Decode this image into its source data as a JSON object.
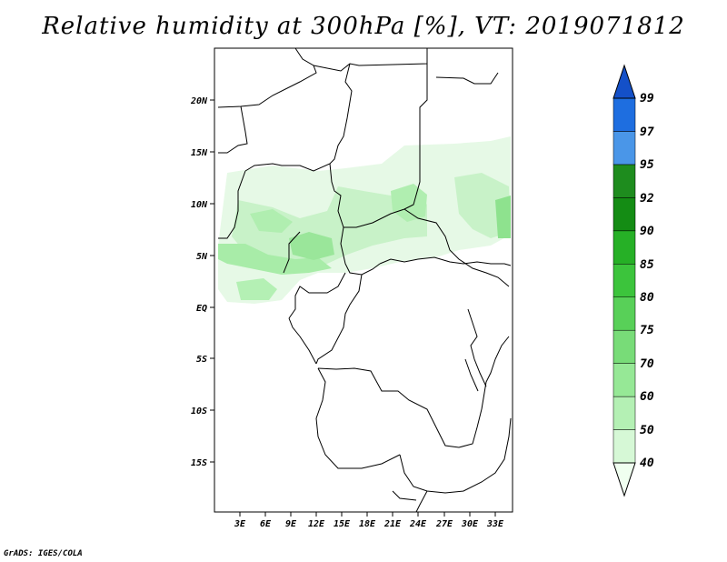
{
  "title": "Relative humidity at 300hPa [%], VT: 2019071812",
  "credit": "GrADS: IGES/COLA",
  "axes": {
    "lat_ticks": [
      "20N",
      "15N",
      "10N",
      "5N",
      "EQ",
      "5S",
      "10S",
      "15S"
    ],
    "lon_ticks": [
      "3E",
      "6E",
      "9E",
      "12E",
      "15E",
      "18E",
      "21E",
      "24E",
      "27E",
      "30E",
      "33E"
    ]
  },
  "colorbar": {
    "levels": [
      "40",
      "50",
      "60",
      "70",
      "75",
      "80",
      "85",
      "90",
      "92",
      "95",
      "97",
      "99"
    ],
    "colors": [
      "#f0fff0",
      "#d6f8d6",
      "#b4f0b4",
      "#96e896",
      "#78dc78",
      "#58d058",
      "#3cc43c",
      "#26b026",
      "#148c14",
      "#1e8c1e",
      "#4a96e8",
      "#1e6ee0",
      "#1450c8"
    ]
  }
}
